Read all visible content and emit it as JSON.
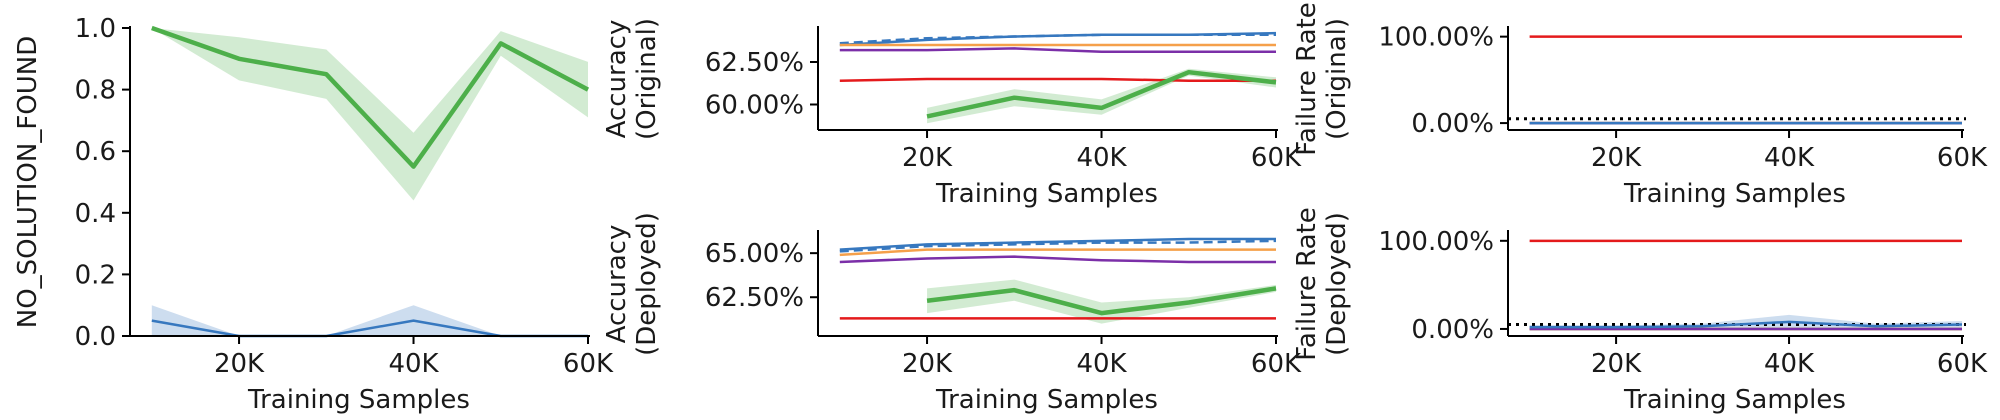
{
  "chart_data": [
    {
      "type": "line",
      "xlabel": "Training Samples",
      "ylabel": "NO_SOLUTION_FOUND",
      "xlim": [
        7500,
        60000
      ],
      "ylim": [
        0,
        1.0
      ],
      "xticks": [
        20000,
        40000,
        60000
      ],
      "xtick_labels": [
        "20K",
        "40K",
        "60K"
      ],
      "yticks": [
        0,
        0.2,
        0.4,
        0.6,
        0.8,
        1.0
      ],
      "ytick_labels": [
        "0.0",
        "0.2",
        "0.4",
        "0.6",
        "0.8",
        "1.0"
      ],
      "grid": false,
      "series": [
        {
          "color": "#4daf4a",
          "style": "thick",
          "x": [
            10000,
            20000,
            30000,
            40000,
            50000,
            60000
          ],
          "values": [
            1.0,
            0.9,
            0.85,
            0.55,
            0.95,
            0.8
          ],
          "band_lower": [
            1.0,
            0.83,
            0.77,
            0.44,
            0.91,
            0.71
          ],
          "band_upper": [
            1.0,
            0.97,
            0.93,
            0.66,
            0.99,
            0.89
          ]
        },
        {
          "color": "#3778bf",
          "style": "solid",
          "x": [
            10000,
            20000,
            30000,
            40000,
            50000,
            60000
          ],
          "values": [
            0.05,
            0.0,
            0.0,
            0.05,
            0.0,
            0.0
          ],
          "band_lower": [
            0.0,
            0.0,
            0.0,
            0.0,
            0.0,
            0.0
          ],
          "band_upper": [
            0.1,
            0.0,
            0.0,
            0.1,
            0.0,
            0.0
          ]
        }
      ]
    },
    {
      "type": "line",
      "xlabel": "Training Samples",
      "ylabel": [
        "Accuracy",
        "(Original)"
      ],
      "xlim": [
        7500,
        60000
      ],
      "ylim": [
        58.5,
        64.5
      ],
      "xticks": [
        20000,
        40000,
        60000
      ],
      "xtick_labels": [
        "20K",
        "40K",
        "60K"
      ],
      "yticks": [
        60.0,
        62.5
      ],
      "ytick_labels": [
        "60.00%",
        "62.50%"
      ],
      "grid": false,
      "series": [
        {
          "color": "#3778bf",
          "style": "solid",
          "x": [
            10000,
            20000,
            30000,
            40000,
            50000,
            60000
          ],
          "values": [
            63.5,
            63.8,
            64.0,
            64.1,
            64.1,
            64.2
          ]
        },
        {
          "color": "#3778bf",
          "style": "dashed",
          "x": [
            10000,
            20000,
            30000,
            40000,
            50000,
            60000
          ],
          "values": [
            63.6,
            63.9,
            64.0,
            64.1,
            64.1,
            64.1
          ]
        },
        {
          "color": "#f5a04a",
          "style": "solid",
          "x": [
            10000,
            20000,
            30000,
            40000,
            50000,
            60000
          ],
          "values": [
            63.5,
            63.5,
            63.5,
            63.5,
            63.5,
            63.5
          ]
        },
        {
          "color": "#7b2fa8",
          "style": "solid",
          "x": [
            10000,
            20000,
            30000,
            40000,
            50000,
            60000
          ],
          "values": [
            63.2,
            63.2,
            63.3,
            63.1,
            63.1,
            63.1
          ]
        },
        {
          "color": "#e41a1c",
          "style": "solid",
          "x": [
            10000,
            20000,
            30000,
            40000,
            50000,
            60000
          ],
          "values": [
            61.4,
            61.5,
            61.5,
            61.5,
            61.4,
            61.4
          ]
        },
        {
          "color": "#4daf4a",
          "style": "thick",
          "x": [
            20000,
            30000,
            40000,
            50000,
            60000
          ],
          "values": [
            59.3,
            60.4,
            59.8,
            61.9,
            61.3
          ],
          "band_lower": [
            58.9,
            59.9,
            59.4,
            61.7,
            61.0
          ],
          "band_upper": [
            59.8,
            60.9,
            60.3,
            62.1,
            61.6
          ]
        }
      ]
    },
    {
      "type": "line",
      "xlabel": "Training Samples",
      "ylabel": [
        "Failure Rate",
        "(Original)"
      ],
      "xlim": [
        7500,
        60000
      ],
      "ylim": [
        -8,
        110
      ],
      "xticks": [
        20000,
        40000,
        60000
      ],
      "xtick_labels": [
        "20K",
        "40K",
        "60K"
      ],
      "yticks": [
        0,
        100
      ],
      "ytick_labels": [
        "0.00%",
        "100.00%"
      ],
      "grid": false,
      "reference_line": {
        "value": 5,
        "style": "dotted",
        "color": "#000000"
      },
      "series": [
        {
          "color": "#e41a1c",
          "style": "solid",
          "x": [
            10000,
            20000,
            30000,
            40000,
            50000,
            60000
          ],
          "values": [
            100,
            100,
            100,
            100,
            100,
            100
          ]
        },
        {
          "color": "#4daf4a",
          "style": "solid",
          "x": [
            10000,
            20000,
            30000,
            40000,
            50000,
            60000
          ],
          "values": [
            0,
            0,
            0,
            0,
            0,
            0
          ]
        },
        {
          "color": "#f5a04a",
          "style": "solid",
          "x": [
            10000,
            20000,
            30000,
            40000,
            50000,
            60000
          ],
          "values": [
            0,
            0,
            0,
            0,
            0,
            0
          ]
        },
        {
          "color": "#7b2fa8",
          "style": "solid",
          "x": [
            10000,
            20000,
            30000,
            40000,
            50000,
            60000
          ],
          "values": [
            0,
            0,
            0,
            0,
            0,
            0
          ]
        },
        {
          "color": "#3778bf",
          "style": "solid",
          "x": [
            10000,
            20000,
            30000,
            40000,
            50000,
            60000
          ],
          "values": [
            0,
            0,
            0,
            0,
            0,
            0
          ]
        }
      ]
    },
    {
      "type": "line",
      "xlabel": "Training Samples",
      "ylabel": [
        "Accuracy",
        "(Deployed)"
      ],
      "xlim": [
        7500,
        60000
      ],
      "ylim": [
        60.3,
        66.2
      ],
      "xticks": [
        20000,
        40000,
        60000
      ],
      "xtick_labels": [
        "20K",
        "40K",
        "60K"
      ],
      "yticks": [
        62.5,
        65.0
      ],
      "ytick_labels": [
        "62.50%",
        "65.00%"
      ],
      "grid": false,
      "series": [
        {
          "color": "#3778bf",
          "style": "solid",
          "x": [
            10000,
            20000,
            30000,
            40000,
            50000,
            60000
          ],
          "values": [
            65.2,
            65.5,
            65.6,
            65.7,
            65.8,
            65.8
          ]
        },
        {
          "color": "#3778bf",
          "style": "dashed",
          "x": [
            10000,
            20000,
            30000,
            40000,
            50000,
            60000
          ],
          "values": [
            65.1,
            65.4,
            65.5,
            65.6,
            65.6,
            65.7
          ]
        },
        {
          "color": "#f5a04a",
          "style": "solid",
          "x": [
            10000,
            20000,
            30000,
            40000,
            50000,
            60000
          ],
          "values": [
            64.9,
            65.2,
            65.2,
            65.2,
            65.2,
            65.2
          ]
        },
        {
          "color": "#7b2fa8",
          "style": "solid",
          "x": [
            10000,
            20000,
            30000,
            40000,
            50000,
            60000
          ],
          "values": [
            64.5,
            64.7,
            64.8,
            64.6,
            64.5,
            64.5
          ]
        },
        {
          "color": "#e41a1c",
          "style": "solid",
          "x": [
            10000,
            20000,
            30000,
            40000,
            50000,
            60000
          ],
          "values": [
            61.3,
            61.3,
            61.3,
            61.3,
            61.3,
            61.3
          ]
        },
        {
          "color": "#4daf4a",
          "style": "thick",
          "x": [
            20000,
            30000,
            40000,
            50000,
            60000
          ],
          "values": [
            62.3,
            62.9,
            61.6,
            62.2,
            63.0
          ],
          "band_lower": [
            61.6,
            62.3,
            61.0,
            61.9,
            62.8
          ],
          "band_upper": [
            63.0,
            63.5,
            62.2,
            62.5,
            63.2
          ]
        }
      ]
    },
    {
      "type": "line",
      "xlabel": "Training Samples",
      "ylabel": [
        "Failure Rate",
        "(Deployed)"
      ],
      "xlim": [
        7500,
        60000
      ],
      "ylim": [
        -8,
        110
      ],
      "xticks": [
        20000,
        40000,
        60000
      ],
      "xtick_labels": [
        "20K",
        "40K",
        "60K"
      ],
      "yticks": [
        0,
        100
      ],
      "ytick_labels": [
        "0.00%",
        "100.00%"
      ],
      "grid": false,
      "reference_line": {
        "value": 5,
        "style": "dotted",
        "color": "#000000"
      },
      "series": [
        {
          "color": "#e41a1c",
          "style": "solid",
          "x": [
            10000,
            20000,
            30000,
            40000,
            50000,
            60000
          ],
          "values": [
            100,
            100,
            100,
            100,
            100,
            100
          ]
        },
        {
          "color": "#4daf4a",
          "style": "solid",
          "x": [
            10000,
            20000,
            30000,
            40000,
            50000,
            60000
          ],
          "values": [
            0,
            0,
            0,
            0,
            0,
            0
          ]
        },
        {
          "color": "#f5a04a",
          "style": "solid",
          "x": [
            10000,
            20000,
            30000,
            40000,
            50000,
            60000
          ],
          "values": [
            0,
            0,
            0,
            0,
            0,
            0
          ]
        },
        {
          "color": "#7b2fa8",
          "style": "solid",
          "x": [
            10000,
            20000,
            30000,
            40000,
            50000,
            60000
          ],
          "values": [
            0,
            0,
            0,
            0,
            0,
            0
          ]
        },
        {
          "color": "#3778bf",
          "style": "solid",
          "x": [
            10000,
            20000,
            30000,
            40000,
            50000,
            60000
          ],
          "values": [
            2,
            2,
            3,
            8,
            3,
            5
          ],
          "band_lower": [
            0,
            0,
            0,
            0,
            0,
            0
          ],
          "band_upper": [
            4,
            4,
            6,
            16,
            6,
            9
          ]
        }
      ]
    }
  ]
}
